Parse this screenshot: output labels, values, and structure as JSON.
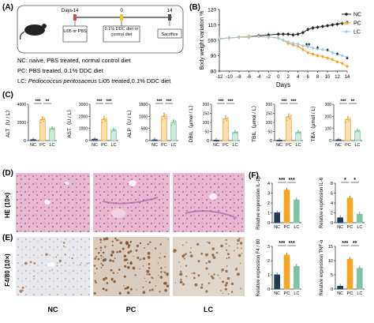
{
  "panel_letters": {
    "a": "(A)",
    "b": "(B)",
    "c": "(C)",
    "d": "(D)",
    "e": "(E)",
    "f": "(F)"
  },
  "panel_a": {
    "timeline": {
      "days_label": "Days",
      "ticks": [
        "-14",
        "0",
        "14"
      ]
    },
    "boxes": [
      "Li05 or PBS",
      "0.1% DDC diet or control diet",
      "Sacrifice"
    ],
    "legend": [
      {
        "key": "NC",
        "text": ": naive, PBS treated, normal control diet"
      },
      {
        "key": "PC",
        "text": ": PBS treated, 0.1% DDC diet"
      },
      {
        "key": "LC",
        "text_plain": ": ",
        "text_italic": "Pediococcus pentosaceus",
        "text_rest": " Li05 treated,0.1% DDC diet"
      }
    ]
  },
  "chart_data": [
    {
      "id": "B",
      "type": "line",
      "title": "",
      "xlabel": "Days",
      "ylabel": "Body weight variation %",
      "x": [
        -12,
        -10,
        -8,
        -6,
        -4,
        -2,
        0,
        1,
        2,
        3,
        4,
        5,
        6,
        7,
        8,
        9,
        10,
        11,
        12,
        13,
        14
      ],
      "xticks": [
        -12,
        -10,
        -8,
        -6,
        -4,
        -2,
        0,
        2,
        4,
        6,
        8,
        10,
        12,
        14
      ],
      "ylim": [
        80,
        120
      ],
      "yticks": [
        80,
        90,
        100,
        110,
        120
      ],
      "legend_position": "top-right",
      "series": [
        {
          "name": "NC",
          "color": "#222222",
          "values": [
            101,
            101.5,
            102,
            102.5,
            103,
            103.5,
            104,
            104,
            104,
            103.5,
            104,
            105,
            107,
            108,
            108.5,
            109,
            109.5,
            110,
            110.5,
            111,
            111.5
          ]
        },
        {
          "name": "PC",
          "color": "#F5A623",
          "values": [
            101,
            101.5,
            102,
            102,
            102.5,
            102,
            101.5,
            100,
            98,
            97,
            96,
            94,
            92,
            91,
            90,
            89.5,
            88.5,
            87.5,
            86,
            85,
            83
          ]
        },
        {
          "name": "LC",
          "color": "#A8C8E0",
          "values": [
            101,
            101.5,
            102,
            102.5,
            102.5,
            102,
            101.5,
            100,
            99,
            98,
            97.5,
            96.5,
            96,
            95,
            94.5,
            94,
            93.5,
            92,
            91,
            90,
            89
          ]
        }
      ],
      "annotations": [
        {
          "x": 6,
          "text": "**"
        },
        {
          "x": 8,
          "text": "*"
        },
        {
          "x": 10,
          "text": "*"
        },
        {
          "x": 12,
          "text": "*"
        },
        {
          "x": 14,
          "text": "*"
        }
      ]
    },
    {
      "id": "ALT",
      "type": "bar",
      "ylabel": "ALT（U / L）",
      "categories": [
        "NC",
        "PC",
        "LC"
      ],
      "values": [
        80,
        2300,
        1300
      ],
      "ylim": [
        0,
        4000
      ],
      "yticks": [
        "0",
        "2000",
        "4000"
      ],
      "sig": [
        "***",
        "**"
      ]
    },
    {
      "id": "AST",
      "type": "bar",
      "ylabel": "AST（U / L）",
      "categories": [
        "NC",
        "PC",
        "LC"
      ],
      "values": [
        100,
        1750,
        850
      ],
      "ylim": [
        0,
        3000
      ],
      "yticks": [
        "0",
        "1000",
        "2000",
        "3000"
      ],
      "sig": [
        "***",
        "***"
      ]
    },
    {
      "id": "ALP",
      "type": "bar",
      "ylabel": "ALP（U / L）",
      "categories": [
        "NC",
        "PC",
        "LC"
      ],
      "values": [
        20,
        1000,
        750
      ],
      "ylim": [
        0,
        1500
      ],
      "yticks": [
        "0",
        "500",
        "1000",
        "1500"
      ],
      "sig": [
        "***",
        "***"
      ]
    },
    {
      "id": "DBIL",
      "type": "bar",
      "ylabel": "DBIL（μmol / L）",
      "categories": [
        "NC",
        "PC",
        "LC"
      ],
      "values": [
        0.5,
        120,
        45
      ],
      "ylim": [
        0,
        200
      ],
      "yticks": [
        "0",
        "50",
        "100",
        "150",
        "200"
      ],
      "sig": [
        "***",
        "***"
      ]
    },
    {
      "id": "TBIL",
      "type": "bar",
      "ylabel": "TBIL（μmol / L）",
      "categories": [
        "NC",
        "PC",
        "LC"
      ],
      "values": [
        1,
        130,
        45
      ],
      "ylim": [
        0,
        200
      ],
      "yticks": [
        "0",
        "50",
        "100",
        "150",
        "200"
      ],
      "sig": [
        "***",
        "***"
      ]
    },
    {
      "id": "TBA",
      "type": "bar",
      "ylabel": "TBA（μmol / L）",
      "categories": [
        "NC",
        "PC",
        "LC"
      ],
      "values": [
        5,
        175,
        80
      ],
      "ylim": [
        0,
        300
      ],
      "yticks": [
        "0",
        "100",
        "200",
        "300"
      ],
      "sig": [
        "***",
        "**"
      ]
    },
    {
      "id": "IL1b",
      "type": "bar",
      "ylabel": "Relative expression IL-1β",
      "categories": [
        "NC",
        "PC",
        "LC"
      ],
      "values": [
        1,
        3.3,
        2.3
      ],
      "ylim": [
        0,
        4
      ],
      "yticks": [
        "0",
        "1",
        "2",
        "3",
        "4"
      ],
      "sig": [
        "***",
        "***"
      ]
    },
    {
      "id": "IL6",
      "type": "bar",
      "ylabel": "Relative expression IL-6",
      "categories": [
        "NC",
        "PC",
        "LC"
      ],
      "values": [
        1,
        5,
        1.7
      ],
      "ylim": [
        0,
        8
      ],
      "yticks": [
        "0",
        "2",
        "4",
        "6",
        "8"
      ],
      "sig": [
        "*",
        "*"
      ]
    },
    {
      "id": "F480",
      "type": "bar",
      "ylabel": "Relative expression F4 / 80",
      "categories": [
        "NC",
        "PC",
        "LC"
      ],
      "values": [
        1,
        2.4,
        1.6
      ],
      "ylim": [
        0,
        3
      ],
      "yticks": [
        "0",
        "1",
        "2",
        "3"
      ],
      "sig": [
        "***",
        "***"
      ]
    },
    {
      "id": "TNFa",
      "type": "bar",
      "ylabel": "Relative expression TNF-α",
      "categories": [
        "NC",
        "PC",
        "LC"
      ],
      "values": [
        1,
        10.5,
        7.3
      ],
      "ylim": [
        0,
        15
      ],
      "yticks": [
        "0",
        "5",
        "10",
        "15"
      ],
      "sig": [
        "***",
        "**"
      ]
    }
  ],
  "histology": {
    "row_labels": [
      "HE (10×)",
      "F4/80 (10×)"
    ],
    "col_labels": [
      "NC",
      "PC",
      "LC"
    ]
  },
  "colors": {
    "NC": "#1F3A5F",
    "PC": "#F5A623",
    "LC": "#7FC4A0"
  }
}
